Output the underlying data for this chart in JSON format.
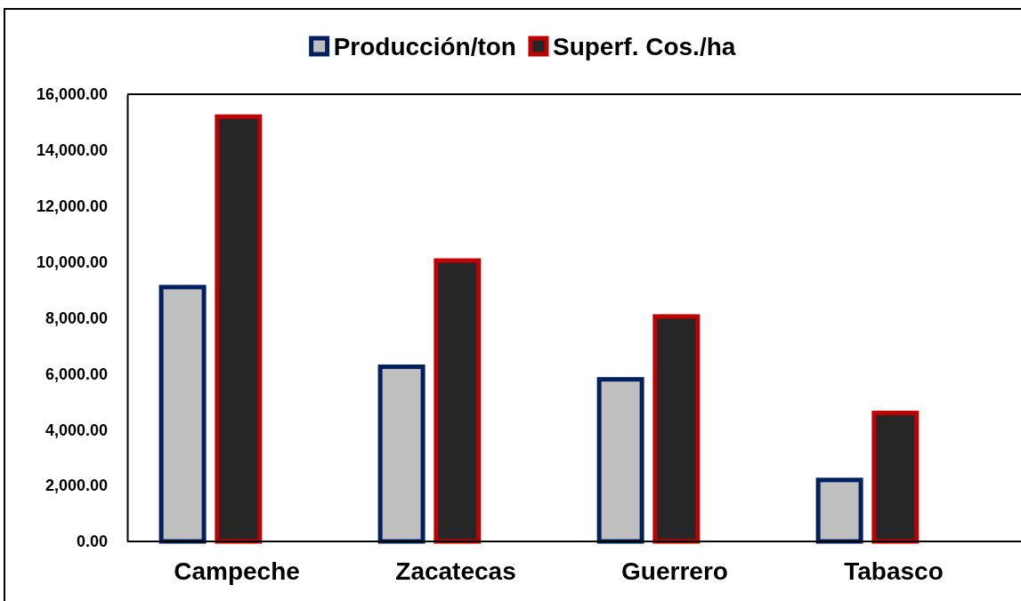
{
  "chart_data": {
    "type": "bar",
    "categories": [
      "Campeche",
      "Zacatecas",
      "Guerrero",
      "Tabasco"
    ],
    "series": [
      {
        "name": "Producción/ton",
        "color": "#bfbfbf",
        "values": [
          9100,
          6250,
          5800,
          2200
        ]
      },
      {
        "name": "Superf. Cos./ha",
        "color": "#262626",
        "values": [
          15200,
          10050,
          8050,
          4600
        ]
      }
    ],
    "ylim": [
      0,
      16000
    ],
    "yticks": [
      {
        "value": 0,
        "label": "0.00"
      },
      {
        "value": 2000,
        "label": "2,000.00"
      },
      {
        "value": 4000,
        "label": "4,000.00"
      },
      {
        "value": 6000,
        "label": "6,000.00"
      },
      {
        "value": 8000,
        "label": "8,000.00"
      },
      {
        "value": 10000,
        "label": "10,000.00"
      },
      {
        "value": 12000,
        "label": "12,000.00"
      },
      {
        "value": 14000,
        "label": "14,000.00"
      },
      {
        "value": 16000,
        "label": "16,000.00"
      }
    ],
    "legend": "top"
  }
}
